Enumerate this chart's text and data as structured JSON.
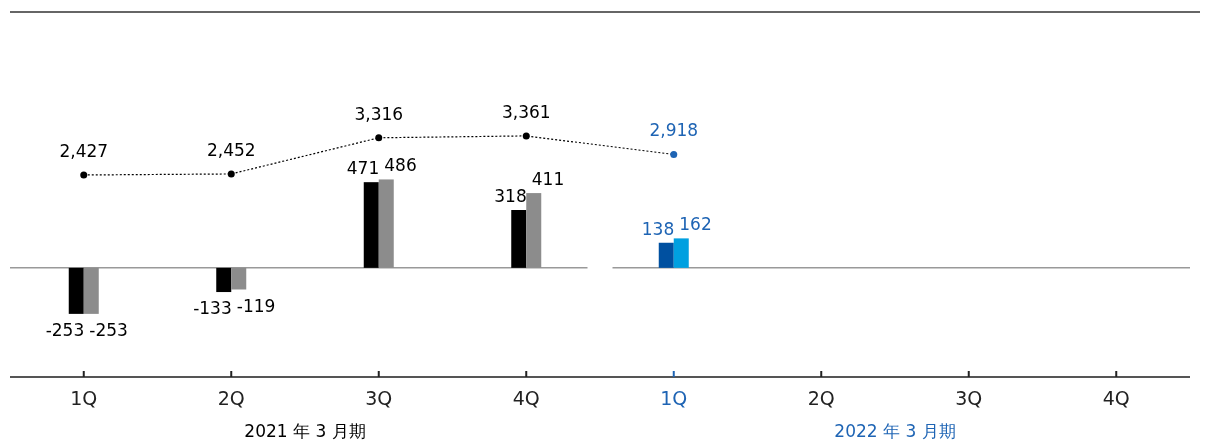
{
  "chart_data": {
    "type": "bar",
    "categories": [
      "1Q",
      "2Q",
      "3Q",
      "4Q",
      "1Q",
      "2Q",
      "3Q",
      "4Q"
    ],
    "annotations": [
      "2021 年 3 月期",
      "2022 年 3 月期"
    ],
    "ylim": [
      -600,
      1390
    ],
    "y2lim": [
      -2400,
      6250
    ],
    "data_labels": true,
    "ref_lines": [
      {
        "axis": "y",
        "value": 0,
        "color": "#999999"
      }
    ],
    "tick_labels": "x",
    "line_style": "dotted",
    "marker": "circle",
    "series": [
      {
        "color": "#000000",
        "values": [
          -253,
          -133,
          471,
          318,
          null,
          null,
          null,
          null
        ]
      },
      {
        "color": "#8c8c8c",
        "values": [
          -253,
          -119,
          486,
          411,
          null,
          null,
          null,
          null
        ]
      },
      {
        "color": "#0050a0",
        "values": [
          null,
          null,
          null,
          null,
          138,
          null,
          null,
          null
        ]
      },
      {
        "color": "#00a0e0",
        "values": [
          null,
          null,
          null,
          null,
          162,
          null,
          null,
          null
        ]
      },
      {
        "type": "line",
        "axis": "y2",
        "color": "#000000",
        "colors": [
          "#000000",
          "#000000",
          "#000000",
          "#000000",
          "#1e64b4",
          null,
          null,
          null
        ],
        "values": [
          2427,
          2452,
          3316,
          3361,
          2918,
          null,
          null,
          null
        ],
        "value_labels": [
          "2,427",
          "2,452",
          "3,316",
          "3,361",
          "2,918",
          null,
          null,
          null
        ]
      }
    ]
  }
}
